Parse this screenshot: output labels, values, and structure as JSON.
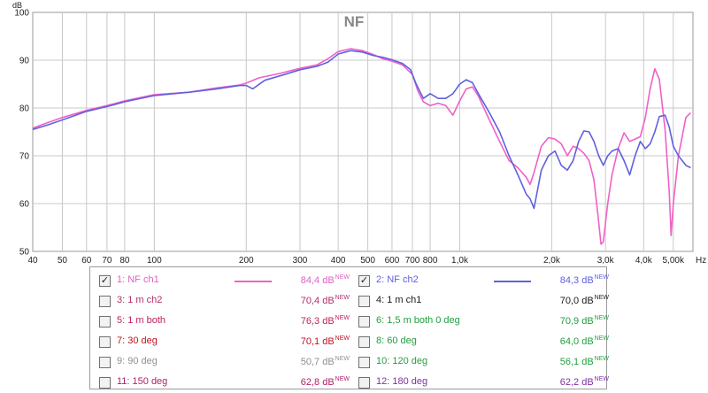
{
  "chart_data": {
    "type": "line",
    "title": "NF",
    "ylabel": "dB",
    "xlabel": "Hz",
    "xscale": "log",
    "xlim": [
      40,
      5800
    ],
    "ylim": [
      50,
      100
    ],
    "grid": true,
    "yticks": [
      50,
      60,
      70,
      80,
      90,
      100
    ],
    "xticks": [
      {
        "v": 40,
        "label": "40"
      },
      {
        "v": 50,
        "label": "50"
      },
      {
        "v": 60,
        "label": "60"
      },
      {
        "v": 70,
        "label": "70"
      },
      {
        "v": 80,
        "label": "80"
      },
      {
        "v": 100,
        "label": "100"
      },
      {
        "v": 200,
        "label": "200"
      },
      {
        "v": 300,
        "label": "300"
      },
      {
        "v": 400,
        "label": "400"
      },
      {
        "v": 500,
        "label": "500"
      },
      {
        "v": 600,
        "label": "600"
      },
      {
        "v": 700,
        "label": "700"
      },
      {
        "v": 800,
        "label": "800"
      },
      {
        "v": 1000,
        "label": "1,0k"
      },
      {
        "v": 2000,
        "label": "2,0k"
      },
      {
        "v": 3000,
        "label": "3,0k"
      },
      {
        "v": 4000,
        "label": "4,0k"
      },
      {
        "v": 5000,
        "label": "5,00k"
      }
    ],
    "series": [
      {
        "name": "1: NF ch1",
        "color": "#f060c8",
        "points": [
          [
            40,
            75.8
          ],
          [
            45,
            77
          ],
          [
            50,
            78
          ],
          [
            60,
            79.5
          ],
          [
            70,
            80.5
          ],
          [
            80,
            81.5
          ],
          [
            100,
            82.8
          ],
          [
            130,
            83.3
          ],
          [
            160,
            84.2
          ],
          [
            190,
            84.8
          ],
          [
            200,
            85.2
          ],
          [
            220,
            86.3
          ],
          [
            260,
            87.3
          ],
          [
            300,
            88.3
          ],
          [
            340,
            89
          ],
          [
            370,
            90.3
          ],
          [
            400,
            91.8
          ],
          [
            440,
            92.4
          ],
          [
            480,
            92
          ],
          [
            520,
            91.2
          ],
          [
            560,
            90.3
          ],
          [
            600,
            89.8
          ],
          [
            650,
            89
          ],
          [
            700,
            87
          ],
          [
            730,
            83.5
          ],
          [
            760,
            81.3
          ],
          [
            800,
            80.5
          ],
          [
            850,
            81
          ],
          [
            900,
            80.5
          ],
          [
            950,
            78.5
          ],
          [
            1000,
            81.5
          ],
          [
            1050,
            84
          ],
          [
            1100,
            84.4
          ],
          [
            1150,
            82.5
          ],
          [
            1250,
            77.5
          ],
          [
            1350,
            73
          ],
          [
            1450,
            69
          ],
          [
            1550,
            67.5
          ],
          [
            1650,
            65.5
          ],
          [
            1700,
            64
          ],
          [
            1750,
            66.5
          ],
          [
            1850,
            72
          ],
          [
            1950,
            73.8
          ],
          [
            2050,
            73.5
          ],
          [
            2150,
            72.5
          ],
          [
            2250,
            70
          ],
          [
            2350,
            72
          ],
          [
            2450,
            71.5
          ],
          [
            2550,
            70.5
          ],
          [
            2650,
            69
          ],
          [
            2750,
            65
          ],
          [
            2830,
            58
          ],
          [
            2900,
            51.5
          ],
          [
            2950,
            52
          ],
          [
            3050,
            60
          ],
          [
            3150,
            66
          ],
          [
            3300,
            71.5
          ],
          [
            3450,
            74.8
          ],
          [
            3600,
            73
          ],
          [
            3750,
            73.5
          ],
          [
            3900,
            74
          ],
          [
            4050,
            78
          ],
          [
            4200,
            84
          ],
          [
            4350,
            88.2
          ],
          [
            4500,
            86
          ],
          [
            4700,
            75.5
          ],
          [
            4850,
            62.5
          ],
          [
            4920,
            53.3
          ],
          [
            5000,
            60
          ],
          [
            5200,
            70
          ],
          [
            5500,
            78
          ],
          [
            5700,
            79
          ]
        ]
      },
      {
        "name": "2: NF ch2",
        "color": "#6060e0",
        "points": [
          [
            40,
            75.5
          ],
          [
            45,
            76.5
          ],
          [
            50,
            77.5
          ],
          [
            60,
            79.3
          ],
          [
            70,
            80.3
          ],
          [
            80,
            81.3
          ],
          [
            100,
            82.6
          ],
          [
            130,
            83.3
          ],
          [
            160,
            84
          ],
          [
            190,
            84.7
          ],
          [
            200,
            84.7
          ],
          [
            210,
            84
          ],
          [
            230,
            85.8
          ],
          [
            260,
            86.8
          ],
          [
            300,
            88
          ],
          [
            340,
            88.7
          ],
          [
            370,
            89.6
          ],
          [
            400,
            91.3
          ],
          [
            440,
            92
          ],
          [
            480,
            91.7
          ],
          [
            520,
            91
          ],
          [
            560,
            90.6
          ],
          [
            600,
            90.1
          ],
          [
            650,
            89.3
          ],
          [
            690,
            88
          ],
          [
            720,
            85
          ],
          [
            760,
            82
          ],
          [
            800,
            83
          ],
          [
            850,
            82
          ],
          [
            900,
            82
          ],
          [
            950,
            83
          ],
          [
            1000,
            85
          ],
          [
            1050,
            85.9
          ],
          [
            1100,
            85.3
          ],
          [
            1150,
            83
          ],
          [
            1250,
            79
          ],
          [
            1350,
            75
          ],
          [
            1450,
            70
          ],
          [
            1550,
            66
          ],
          [
            1650,
            62
          ],
          [
            1700,
            61
          ],
          [
            1750,
            59
          ],
          [
            1850,
            67
          ],
          [
            1950,
            70
          ],
          [
            2050,
            71
          ],
          [
            2150,
            68
          ],
          [
            2250,
            67
          ],
          [
            2350,
            69
          ],
          [
            2450,
            73
          ],
          [
            2550,
            75.2
          ],
          [
            2650,
            75
          ],
          [
            2750,
            73
          ],
          [
            2850,
            70
          ],
          [
            2950,
            68
          ],
          [
            3050,
            70
          ],
          [
            3150,
            71
          ],
          [
            3300,
            71.5
          ],
          [
            3450,
            69
          ],
          [
            3600,
            66
          ],
          [
            3750,
            70
          ],
          [
            3900,
            73
          ],
          [
            4050,
            71.5
          ],
          [
            4200,
            72.5
          ],
          [
            4350,
            75
          ],
          [
            4500,
            78.2
          ],
          [
            4700,
            78.5
          ],
          [
            4850,
            76
          ],
          [
            5000,
            72
          ],
          [
            5200,
            70
          ],
          [
            5500,
            68
          ],
          [
            5700,
            67.5
          ]
        ]
      }
    ]
  },
  "legend": {
    "new_tag": "NEW",
    "items": [
      {
        "label": "1: NF ch1",
        "value": "84,4 dB",
        "checked": true,
        "color": "#e060c0",
        "swatch": "#f060c8"
      },
      {
        "label": "2: NF ch2",
        "value": "84,3 dB",
        "checked": true,
        "color": "#6060e0",
        "swatch": "#6060e0"
      },
      {
        "label": "3: 1 m ch2",
        "value": "70,4 dB",
        "checked": false,
        "color": "#b0306a",
        "swatch": ""
      },
      {
        "label": "4: 1 m ch1",
        "value": "70,0 dB",
        "checked": false,
        "color": "#1a1a1a",
        "swatch": ""
      },
      {
        "label": "5: 1 m both",
        "value": "76,3 dB",
        "checked": false,
        "color": "#c02060",
        "swatch": ""
      },
      {
        "label": "6: 1,5 m both 0 deg",
        "value": "70,9 dB",
        "checked": false,
        "color": "#20a040",
        "swatch": ""
      },
      {
        "label": "7: 30 deg",
        "value": "70,1 dB",
        "checked": false,
        "color": "#c01020",
        "swatch": ""
      },
      {
        "label": "8: 60 deg",
        "value": "64,0 dB",
        "checked": false,
        "color": "#20a040",
        "swatch": ""
      },
      {
        "label": "9: 90 deg",
        "value": "50,7 dB",
        "checked": false,
        "color": "#909090",
        "swatch": ""
      },
      {
        "label": "10: 120 deg",
        "value": "56,1 dB",
        "checked": false,
        "color": "#20a040",
        "swatch": ""
      },
      {
        "label": "11: 150 deg",
        "value": "62,8 dB",
        "checked": false,
        "color": "#b0206a",
        "swatch": ""
      },
      {
        "label": "12: 180 deg",
        "value": "62,2 dB",
        "checked": false,
        "color": "#8030a0",
        "swatch": ""
      }
    ]
  }
}
